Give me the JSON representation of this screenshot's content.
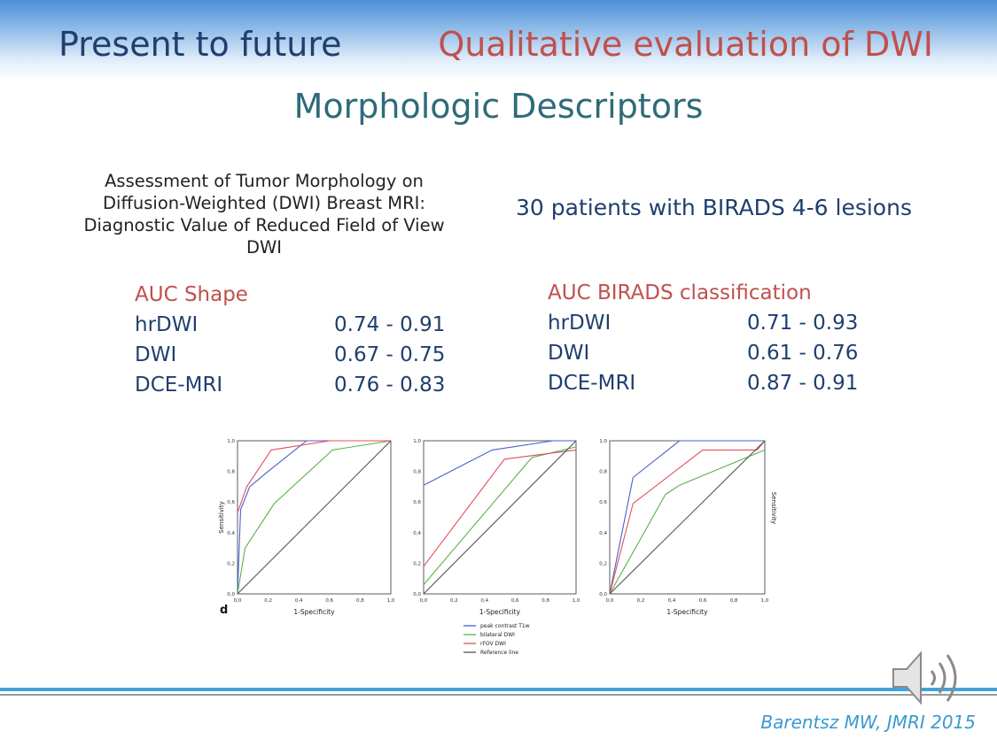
{
  "header": {
    "left": "Present to future",
    "right": "Qualitative evaluation of DWI"
  },
  "subtitle": "Morphologic Descriptors",
  "paper_title": "Assessment of Tumor Morphology on Diffusion-Weighted (DWI) Breast MRI: Diagnostic Value of Reduced Field of View DWI",
  "patients": "30 patients with BIRADS 4-6 lesions",
  "auc_shape": {
    "title": "AUC Shape",
    "rows": [
      {
        "label": "hrDWI",
        "value": "0.74 - 0.91"
      },
      {
        "label": "DWI",
        "value": "0.67 - 0.75"
      },
      {
        "label": "DCE-MRI",
        "value": "0.76 - 0.83"
      }
    ]
  },
  "auc_birads": {
    "title": "AUC BIRADS classification",
    "rows": [
      {
        "label": "hrDWI",
        "value": "0.71 - 0.93"
      },
      {
        "label": "DWI",
        "value": "0.61 - 0.76"
      },
      {
        "label": "DCE-MRI",
        "value": "0.87 - 0.91"
      }
    ]
  },
  "citation": "Barentsz MW, JMRI 2015",
  "colors": {
    "peak": "#4a5fd0",
    "bilateral": "#5ab04a",
    "rfov": "#e05060",
    "reference": "#555555"
  },
  "chart_data": [
    {
      "type": "line",
      "panel_label": "d",
      "xlabel": "1-Specificity",
      "ylabel": "Sensitivity",
      "xlim": [
        0,
        1
      ],
      "ylim": [
        0,
        1
      ],
      "ticks": [
        "0,0",
        "0,2",
        "0,4",
        "0,6",
        "0,8",
        "1,0"
      ],
      "series": [
        {
          "name": "peak contrast T1w",
          "color": "#4a5fd0",
          "points": [
            [
              0,
              0
            ],
            [
              0.02,
              0.55
            ],
            [
              0.08,
              0.7
            ],
            [
              0.2,
              0.8
            ],
            [
              0.45,
              1.0
            ],
            [
              1,
              1
            ]
          ]
        },
        {
          "name": "bilateral DWI",
          "color": "#5ab04a",
          "points": [
            [
              0,
              0
            ],
            [
              0.05,
              0.3
            ],
            [
              0.24,
              0.59
            ],
            [
              0.62,
              0.94
            ],
            [
              1,
              1
            ]
          ]
        },
        {
          "name": "rFOV DWI",
          "color": "#e05060",
          "points": [
            [
              0,
              0.53
            ],
            [
              0.06,
              0.7
            ],
            [
              0.22,
              0.94
            ],
            [
              0.6,
              1.0
            ],
            [
              1,
              1
            ]
          ]
        },
        {
          "name": "Reference line",
          "color": "#555555",
          "points": [
            [
              0,
              0
            ],
            [
              1,
              1
            ]
          ]
        }
      ]
    },
    {
      "type": "line",
      "panel_label": "",
      "xlabel": "1-Specificity",
      "ylabel": "",
      "xlim": [
        0,
        1
      ],
      "ylim": [
        0,
        1
      ],
      "ticks": [
        "0,0",
        "0,2",
        "0,4",
        "0,6",
        "0,8",
        "1,0"
      ],
      "series": [
        {
          "name": "peak contrast T1w",
          "color": "#4a5fd0",
          "points": [
            [
              0,
              0.71
            ],
            [
              0.45,
              0.94
            ],
            [
              0.85,
              1.0
            ],
            [
              1,
              1
            ]
          ]
        },
        {
          "name": "bilateral DWI",
          "color": "#5ab04a",
          "points": [
            [
              0,
              0.06
            ],
            [
              0.71,
              0.89
            ],
            [
              1,
              0.96
            ]
          ]
        },
        {
          "name": "rFOV DWI",
          "color": "#e05060",
          "points": [
            [
              0,
              0.18
            ],
            [
              0.53,
              0.88
            ],
            [
              1,
              0.94
            ]
          ]
        },
        {
          "name": "Reference line",
          "color": "#555555",
          "points": [
            [
              0,
              0
            ],
            [
              1,
              1
            ]
          ]
        }
      ]
    },
    {
      "type": "line",
      "panel_label": "",
      "xlabel": "1-Specificity",
      "ylabel": "Sensitivity",
      "xlim": [
        0,
        1
      ],
      "ylim": [
        0,
        1
      ],
      "ticks": [
        "0,0",
        "0,2",
        "0,4",
        "0,6",
        "0,8",
        "1,0"
      ],
      "series": [
        {
          "name": "peak contrast T1w",
          "color": "#4a5fd0",
          "points": [
            [
              0,
              0
            ],
            [
              0.15,
              0.76
            ],
            [
              0.45,
              1.0
            ],
            [
              1,
              1
            ]
          ]
        },
        {
          "name": "bilateral DWI",
          "color": "#5ab04a",
          "points": [
            [
              0,
              0
            ],
            [
              0.36,
              0.65
            ],
            [
              0.45,
              0.71
            ],
            [
              1,
              0.94
            ]
          ]
        },
        {
          "name": "rFOV DWI",
          "color": "#e05060",
          "points": [
            [
              0,
              0
            ],
            [
              0.15,
              0.59
            ],
            [
              0.6,
              0.94
            ],
            [
              0.95,
              0.94
            ],
            [
              1,
              1
            ]
          ]
        },
        {
          "name": "Reference line",
          "color": "#555555",
          "points": [
            [
              0,
              0
            ],
            [
              1,
              1
            ]
          ]
        }
      ]
    }
  ]
}
